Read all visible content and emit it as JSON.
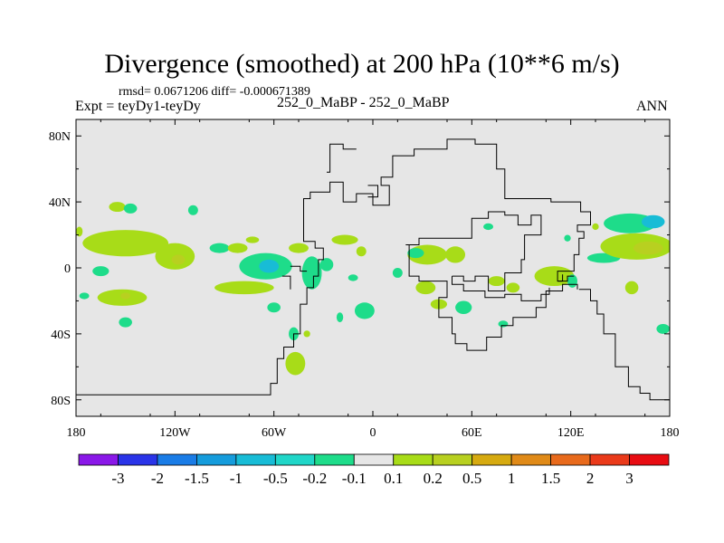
{
  "chart_data": {
    "type": "contour-map",
    "title": "Divergence (smoothed) at 200 hPa (10**6 m/s)",
    "stats_line": "rmsd= 0.0671206 diff= -0.000671389",
    "left_label": "Expt = teyDy1-teyDy",
    "center_label": "252_0_MaBP - 252_0_MaBP",
    "right_label": "ANN",
    "x_range": [
      -180,
      180
    ],
    "y_range": [
      -90,
      90
    ],
    "x_ticks": [
      {
        "value": -180,
        "label": "180"
      },
      {
        "value": -120,
        "label": "120W"
      },
      {
        "value": -60,
        "label": "60W"
      },
      {
        "value": 0,
        "label": "0"
      },
      {
        "value": 60,
        "label": "60E"
      },
      {
        "value": 120,
        "label": "120E"
      },
      {
        "value": 180,
        "label": "180"
      }
    ],
    "y_ticks": [
      {
        "value": 80,
        "label": "80N"
      },
      {
        "value": 40,
        "label": "40N"
      },
      {
        "value": 0,
        "label": "0"
      },
      {
        "value": -40,
        "label": "40S"
      },
      {
        "value": -80,
        "label": "80S"
      }
    ],
    "levels": [
      "-3",
      "-2",
      "-1.5",
      "-1",
      "-0.5",
      "-0.2",
      "-0.1",
      "0.1",
      "0.2",
      "0.5",
      "1",
      "1.5",
      "2",
      "3"
    ],
    "colors": [
      "#8a18e8",
      "#2a34e8",
      "#1a7ce6",
      "#159cdc",
      "#18bcd6",
      "#20d6c8",
      "#1edc8a",
      "#e6e6e6",
      "#a8dc18",
      "#b8d020",
      "#d6aa10",
      "#e08a18",
      "#e86a1c",
      "#ea3a1a",
      "#e80c12"
    ],
    "fill_colors": {
      "weak_positive": "#a8dc18",
      "weak_negative": "#1edc8a",
      "moderate_positive": "#b8d020",
      "moderate_negative": "#18bcd6",
      "background": "#e6e6e6"
    },
    "anomalies": [
      {
        "lon": -155,
        "lat": 37,
        "rx": 5,
        "ry": 3,
        "sign": "pos"
      },
      {
        "lon": -147,
        "lat": 36,
        "rx": 4,
        "ry": 3,
        "sign": "neg"
      },
      {
        "lon": -109,
        "lat": 35,
        "rx": 3,
        "ry": 3,
        "sign": "neg"
      },
      {
        "lon": -178,
        "lat": 22,
        "rx": 2,
        "ry": 3,
        "sign": "pos"
      },
      {
        "lon": -150,
        "lat": 15,
        "rx": 26,
        "ry": 8,
        "sign": "pos"
      },
      {
        "lon": -120,
        "lat": 7,
        "rx": 12,
        "ry": 8,
        "sign": "pos"
      },
      {
        "lon": -118,
        "lat": 5,
        "rx": 4,
        "ry": 3,
        "sign": "mpos"
      },
      {
        "lon": -165,
        "lat": -2,
        "rx": 5,
        "ry": 3,
        "sign": "neg"
      },
      {
        "lon": -93,
        "lat": 12,
        "rx": 6,
        "ry": 3,
        "sign": "neg"
      },
      {
        "lon": -82,
        "lat": 12,
        "rx": 6,
        "ry": 3,
        "sign": "pos"
      },
      {
        "lon": -73,
        "lat": 17,
        "rx": 4,
        "ry": 2,
        "sign": "pos"
      },
      {
        "lon": -65,
        "lat": 1,
        "rx": 16,
        "ry": 8,
        "sign": "neg"
      },
      {
        "lon": -63,
        "lat": 1,
        "rx": 6,
        "ry": 4,
        "sign": "mneg"
      },
      {
        "lon": -78,
        "lat": -12,
        "rx": 18,
        "ry": 4,
        "sign": "pos"
      },
      {
        "lon": -152,
        "lat": -18,
        "rx": 15,
        "ry": 5,
        "sign": "pos"
      },
      {
        "lon": -150,
        "lat": -17,
        "rx": 3,
        "ry": 2,
        "sign": "mpos"
      },
      {
        "lon": -175,
        "lat": -17,
        "rx": 3,
        "ry": 2,
        "sign": "neg"
      },
      {
        "lon": -150,
        "lat": -33,
        "rx": 4,
        "ry": 3,
        "sign": "neg"
      },
      {
        "lon": -60,
        "lat": -24,
        "rx": 4,
        "ry": 3,
        "sign": "neg"
      },
      {
        "lon": -45,
        "lat": 12,
        "rx": 6,
        "ry": 3,
        "sign": "pos"
      },
      {
        "lon": -37,
        "lat": -3,
        "rx": 6,
        "ry": 10,
        "sign": "neg"
      },
      {
        "lon": -28,
        "lat": 2,
        "rx": 4,
        "ry": 4,
        "sign": "neg"
      },
      {
        "lon": -48,
        "lat": -40,
        "rx": 3,
        "ry": 4,
        "sign": "neg"
      },
      {
        "lon": -40,
        "lat": -40,
        "rx": 2,
        "ry": 2,
        "sign": "pos"
      },
      {
        "lon": -47,
        "lat": -58,
        "rx": 6,
        "ry": 7,
        "sign": "pos"
      },
      {
        "lon": -17,
        "lat": 17,
        "rx": 8,
        "ry": 3,
        "sign": "pos"
      },
      {
        "lon": -7,
        "lat": 10,
        "rx": 3,
        "ry": 3,
        "sign": "pos"
      },
      {
        "lon": -12,
        "lat": -6,
        "rx": 3,
        "ry": 2,
        "sign": "neg"
      },
      {
        "lon": -5,
        "lat": -26,
        "rx": 6,
        "ry": 5,
        "sign": "neg"
      },
      {
        "lon": -20,
        "lat": -30,
        "rx": 2,
        "ry": 3,
        "sign": "neg"
      },
      {
        "lon": 15,
        "lat": -3,
        "rx": 3,
        "ry": 3,
        "sign": "neg"
      },
      {
        "lon": 33,
        "lat": 8,
        "rx": 12,
        "ry": 6,
        "sign": "pos"
      },
      {
        "lon": 26,
        "lat": 9,
        "rx": 5,
        "ry": 3,
        "sign": "neg"
      },
      {
        "lon": 50,
        "lat": 8,
        "rx": 6,
        "ry": 5,
        "sign": "pos"
      },
      {
        "lon": 70,
        "lat": 25,
        "rx": 3,
        "ry": 2,
        "sign": "neg"
      },
      {
        "lon": 32,
        "lat": -12,
        "rx": 6,
        "ry": 4,
        "sign": "pos"
      },
      {
        "lon": 40,
        "lat": -22,
        "rx": 5,
        "ry": 3,
        "sign": "pos"
      },
      {
        "lon": 55,
        "lat": -24,
        "rx": 5,
        "ry": 4,
        "sign": "neg"
      },
      {
        "lon": 75,
        "lat": -8,
        "rx": 5,
        "ry": 3,
        "sign": "pos"
      },
      {
        "lon": 85,
        "lat": -12,
        "rx": 4,
        "ry": 3,
        "sign": "pos"
      },
      {
        "lon": 79,
        "lat": -34,
        "rx": 3,
        "ry": 2,
        "sign": "neg"
      },
      {
        "lon": 110,
        "lat": -5,
        "rx": 12,
        "ry": 6,
        "sign": "pos"
      },
      {
        "lon": 121,
        "lat": -8,
        "rx": 3,
        "ry": 4,
        "sign": "neg"
      },
      {
        "lon": 118,
        "lat": 18,
        "rx": 2,
        "ry": 2,
        "sign": "neg"
      },
      {
        "lon": 135,
        "lat": 25,
        "rx": 2,
        "ry": 2,
        "sign": "pos"
      },
      {
        "lon": 140,
        "lat": 6,
        "rx": 10,
        "ry": 3,
        "sign": "neg"
      },
      {
        "lon": 156,
        "lat": 27,
        "rx": 16,
        "ry": 6,
        "sign": "neg"
      },
      {
        "lon": 170,
        "lat": 28,
        "rx": 7,
        "ry": 4,
        "sign": "mneg"
      },
      {
        "lon": 160,
        "lat": 13,
        "rx": 22,
        "ry": 8,
        "sign": "pos"
      },
      {
        "lon": 167,
        "lat": 12,
        "rx": 9,
        "ry": 4,
        "sign": "mpos"
      },
      {
        "lon": 157,
        "lat": -12,
        "rx": 4,
        "ry": 4,
        "sign": "pos"
      },
      {
        "lon": 176,
        "lat": -37,
        "rx": 4,
        "ry": 3,
        "sign": "neg"
      }
    ],
    "coastlines": [
      [
        [
          -180,
          -77
        ],
        [
          -62,
          -77
        ],
        [
          -62,
          -70
        ],
        [
          -58,
          -70
        ],
        [
          -58,
          -55
        ],
        [
          -54,
          -55
        ],
        [
          -54,
          -48
        ],
        [
          -48,
          -48
        ],
        [
          -48,
          -40
        ],
        [
          -44,
          -40
        ],
        [
          -44,
          -22
        ],
        [
          -40,
          -22
        ],
        [
          -40,
          -12
        ],
        [
          -36,
          -12
        ],
        [
          -36,
          -5
        ],
        [
          -33,
          -5
        ],
        [
          -33,
          5
        ],
        [
          -30,
          5
        ],
        [
          -30,
          12
        ],
        [
          -35,
          12
        ],
        [
          -35,
          16
        ],
        [
          -42,
          16
        ],
        [
          -42,
          42
        ],
        [
          -38,
          42
        ],
        [
          -38,
          46
        ],
        [
          -26,
          46
        ],
        [
          -26,
          52
        ],
        [
          -18,
          52
        ],
        [
          -18,
          40
        ],
        [
          -10,
          40
        ],
        [
          -10,
          45
        ],
        [
          0,
          45
        ],
        [
          0,
          38
        ],
        [
          10,
          38
        ],
        [
          10,
          50
        ],
        [
          5,
          50
        ],
        [
          5,
          55
        ],
        [
          12,
          55
        ],
        [
          12,
          68
        ],
        [
          25,
          68
        ],
        [
          25,
          72
        ],
        [
          45,
          72
        ],
        [
          45,
          78
        ],
        [
          62,
          78
        ],
        [
          62,
          75
        ],
        [
          75,
          75
        ],
        [
          75,
          60
        ],
        [
          80,
          60
        ],
        [
          80,
          42
        ],
        [
          108,
          42
        ],
        [
          108,
          40
        ],
        [
          126,
          40
        ],
        [
          126,
          34
        ],
        [
          132,
          34
        ],
        [
          132,
          26
        ],
        [
          124,
          26
        ],
        [
          124,
          22
        ],
        [
          128,
          22
        ],
        [
          128,
          18
        ],
        [
          125,
          18
        ],
        [
          125,
          8
        ],
        [
          122,
          8
        ],
        [
          122,
          -2
        ],
        [
          112,
          -2
        ],
        [
          112,
          -8
        ],
        [
          115,
          -8
        ],
        [
          115,
          -4
        ]
      ],
      [
        [
          112,
          -8
        ],
        [
          118,
          -8
        ],
        [
          118,
          -5
        ],
        [
          122,
          -5
        ]
      ],
      [
        [
          125,
          -13
        ],
        [
          132,
          -13
        ],
        [
          132,
          -20
        ],
        [
          136,
          -20
        ],
        [
          136,
          -28
        ],
        [
          140,
          -28
        ],
        [
          140,
          -40
        ],
        [
          147,
          -40
        ],
        [
          147,
          -60
        ],
        [
          155,
          -60
        ],
        [
          155,
          -72
        ],
        [
          162,
          -72
        ],
        [
          162,
          -76
        ],
        [
          168,
          -76
        ],
        [
          168,
          -80
        ],
        [
          180,
          -80
        ]
      ],
      [
        [
          20,
          14
        ],
        [
          22,
          14
        ],
        [
          22,
          -5
        ],
        [
          28,
          -5
        ],
        [
          28,
          -8
        ],
        [
          45,
          -8
        ],
        [
          45,
          -18
        ],
        [
          40,
          -18
        ],
        [
          40,
          -30
        ],
        [
          48,
          -30
        ],
        [
          48,
          -40
        ],
        [
          50,
          -40
        ],
        [
          50,
          -46
        ],
        [
          57,
          -46
        ],
        [
          57,
          -50
        ],
        [
          69,
          -50
        ],
        [
          69,
          -42
        ],
        [
          78,
          -42
        ],
        [
          78,
          -35
        ],
        [
          85,
          -35
        ],
        [
          85,
          -30
        ],
        [
          99,
          -30
        ],
        [
          99,
          -24
        ],
        [
          105,
          -24
        ],
        [
          105,
          -14
        ],
        [
          115,
          -14
        ],
        [
          115,
          -10
        ],
        [
          124,
          -10
        ],
        [
          124,
          -13
        ]
      ],
      [
        [
          20,
          14
        ],
        [
          28,
          14
        ],
        [
          28,
          18
        ],
        [
          60,
          18
        ],
        [
          60,
          30
        ],
        [
          70,
          30
        ],
        [
          70,
          34
        ],
        [
          80,
          34
        ],
        [
          80,
          32
        ],
        [
          88,
          32
        ],
        [
          88,
          26
        ],
        [
          96,
          26
        ],
        [
          96,
          32
        ],
        [
          102,
          32
        ],
        [
          102,
          20
        ],
        [
          92,
          20
        ],
        [
          92,
          5
        ],
        [
          90,
          5
        ],
        [
          90,
          -3
        ],
        [
          80,
          -3
        ],
        [
          80,
          -14
        ],
        [
          70,
          -14
        ],
        [
          70,
          -5
        ],
        [
          62,
          -5
        ],
        [
          62,
          -8
        ],
        [
          55,
          -8
        ],
        [
          55,
          -5
        ],
        [
          48,
          -5
        ]
      ],
      [
        [
          48,
          -5
        ],
        [
          48,
          -10
        ],
        [
          55,
          -10
        ],
        [
          55,
          -14
        ],
        [
          68,
          -14
        ],
        [
          68,
          -18
        ],
        [
          80,
          -18
        ],
        [
          80,
          -16
        ],
        [
          90,
          -16
        ],
        [
          90,
          -20
        ],
        [
          102,
          -20
        ],
        [
          102,
          -16
        ],
        [
          107,
          -16
        ],
        [
          107,
          -12
        ]
      ],
      [
        [
          -50,
          1
        ],
        [
          -44,
          1
        ],
        [
          -44,
          -2
        ],
        [
          -40,
          -2
        ]
      ],
      [
        [
          -55,
          -5
        ],
        [
          -50,
          -5
        ],
        [
          -50,
          -13
        ]
      ],
      [
        [
          -28,
          58
        ],
        [
          -26,
          58
        ],
        [
          -26,
          75
        ],
        [
          -18,
          75
        ],
        [
          -18,
          72
        ],
        [
          -10,
          72
        ]
      ],
      [
        [
          -3,
          50
        ],
        [
          3,
          50
        ],
        [
          3,
          43
        ],
        [
          -3,
          43
        ]
      ]
    ]
  }
}
